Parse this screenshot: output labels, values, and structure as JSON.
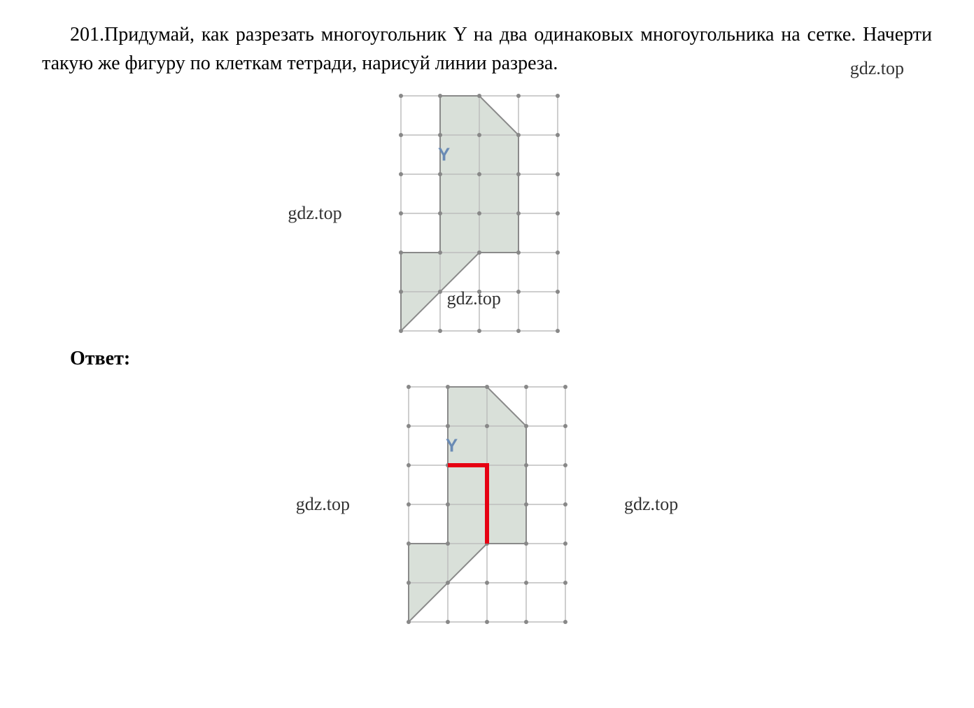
{
  "problem": {
    "number": "201.",
    "text_line1": "Придумай, как разрезать многоугольник Y на два одинаковых",
    "text_line2": "многоугольника на сетке. Начерти такую же фигуру по клеткам тетради,",
    "text_line3": "нарисуй линии разреза."
  },
  "answer_label": "Ответ:",
  "watermarks": {
    "top": "gdz.top",
    "mid_left": "gdz.top",
    "mid_center": "gdz.top",
    "bottom_left": "gdz.top",
    "bottom_right": "gdz.top"
  },
  "figure": {
    "label": "Y",
    "label_color": "#6a8bb5",
    "label_fontsize": 26,
    "label_fontweight": "bold",
    "grid": {
      "cols": 4,
      "rows": 6,
      "cell_size": 56,
      "line_color": "#bdbdbd",
      "line_width": 1.5,
      "dot_color": "#888888",
      "dot_radius": 3
    },
    "polygon": {
      "fill": "#d9e0d9",
      "stroke": "#8a8a8a",
      "stroke_width": 2,
      "points": [
        [
          1,
          0
        ],
        [
          2,
          0
        ],
        [
          3,
          1
        ],
        [
          3,
          2
        ],
        [
          3,
          4
        ],
        [
          2,
          4
        ],
        [
          0,
          6
        ],
        [
          0,
          4
        ],
        [
          1,
          4
        ],
        [
          1,
          0
        ]
      ]
    },
    "polygon_inner_line": {
      "stroke": "#8a8a8a",
      "stroke_width": 2,
      "points": [
        [
          0,
          4
        ],
        [
          2,
          4
        ]
      ]
    },
    "cut_line": {
      "stroke": "#e60012",
      "stroke_width": 6,
      "points": [
        [
          1,
          2
        ],
        [
          2,
          2
        ],
        [
          2,
          4
        ]
      ]
    },
    "background_color": "#ffffff"
  }
}
